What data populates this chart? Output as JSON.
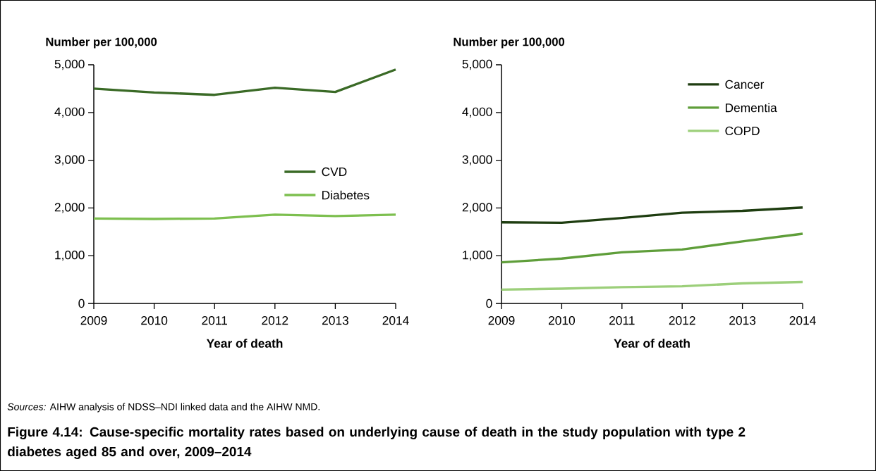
{
  "chart_data": [
    {
      "type": "line",
      "title": "Figure 4.14: Cause-specific mortality rates based on underlying cause of death in the study population with type 2 diabetes aged 85 and over, 2009–2014",
      "annotations": [
        "*Sources:* AIHW analysis of NDSS–NDI linked data and the AIHW NMD."
      ],
      "ylabel": "Number per 100,000",
      "xlabel": "Year of death",
      "x": [
        2009,
        2010,
        2011,
        2012,
        2013,
        2014
      ],
      "series": [
        {
          "name": "CVD",
          "color": "#3a6a26",
          "values": [
            4500,
            4420,
            4370,
            4520,
            4430,
            4900
          ]
        },
        {
          "name": "Diabetes",
          "color": "#7dbf4f",
          "values": [
            1780,
            1770,
            1780,
            1860,
            1830,
            1860
          ]
        }
      ],
      "xlim": [
        2009,
        2014
      ],
      "xticks": [
        2009,
        2010,
        2011,
        2012,
        2013,
        2014
      ],
      "ylim": [
        0,
        5000
      ],
      "yticks": [
        0,
        {
          "value": 1000,
          "label": "1,000"
        },
        {
          "value": 2000,
          "label": "2,000"
        },
        {
          "value": 3000,
          "label": "3,000"
        },
        {
          "value": 4000,
          "label": "4,000"
        },
        {
          "value": 5000,
          "label": "5,000"
        }
      ],
      "legend": "right",
      "marker": "none",
      "line_style": "solid"
    },
    {
      "type": "line",
      "ylabel": "Number per 100,000",
      "xlabel": "Year of death",
      "x": [
        2009,
        2010,
        2011,
        2012,
        2013,
        2014
      ],
      "series": [
        {
          "name": "Cancer",
          "color": "#1e3d10",
          "values": [
            1700,
            1690,
            1790,
            1900,
            1940,
            2010
          ]
        },
        {
          "name": "Dementia",
          "color": "#5f9e3a",
          "values": [
            860,
            940,
            1070,
            1130,
            1300,
            1460
          ]
        },
        {
          "name": "COPD",
          "color": "#9ccf7a",
          "values": [
            290,
            310,
            340,
            360,
            420,
            450
          ]
        }
      ],
      "xlim": [
        2009,
        2014
      ],
      "xticks": [
        2009,
        2010,
        2011,
        2012,
        2013,
        2014
      ],
      "ylim": [
        0,
        5000
      ],
      "yticks": [
        0,
        {
          "value": 1000,
          "label": "1,000"
        },
        {
          "value": 2000,
          "label": "2,000"
        },
        {
          "value": 3000,
          "label": "3,000"
        },
        {
          "value": 4000,
          "label": "4,000"
        },
        {
          "value": 5000,
          "label": "5,000"
        }
      ],
      "legend": "top right",
      "marker": "none",
      "line_style": "solid"
    }
  ]
}
